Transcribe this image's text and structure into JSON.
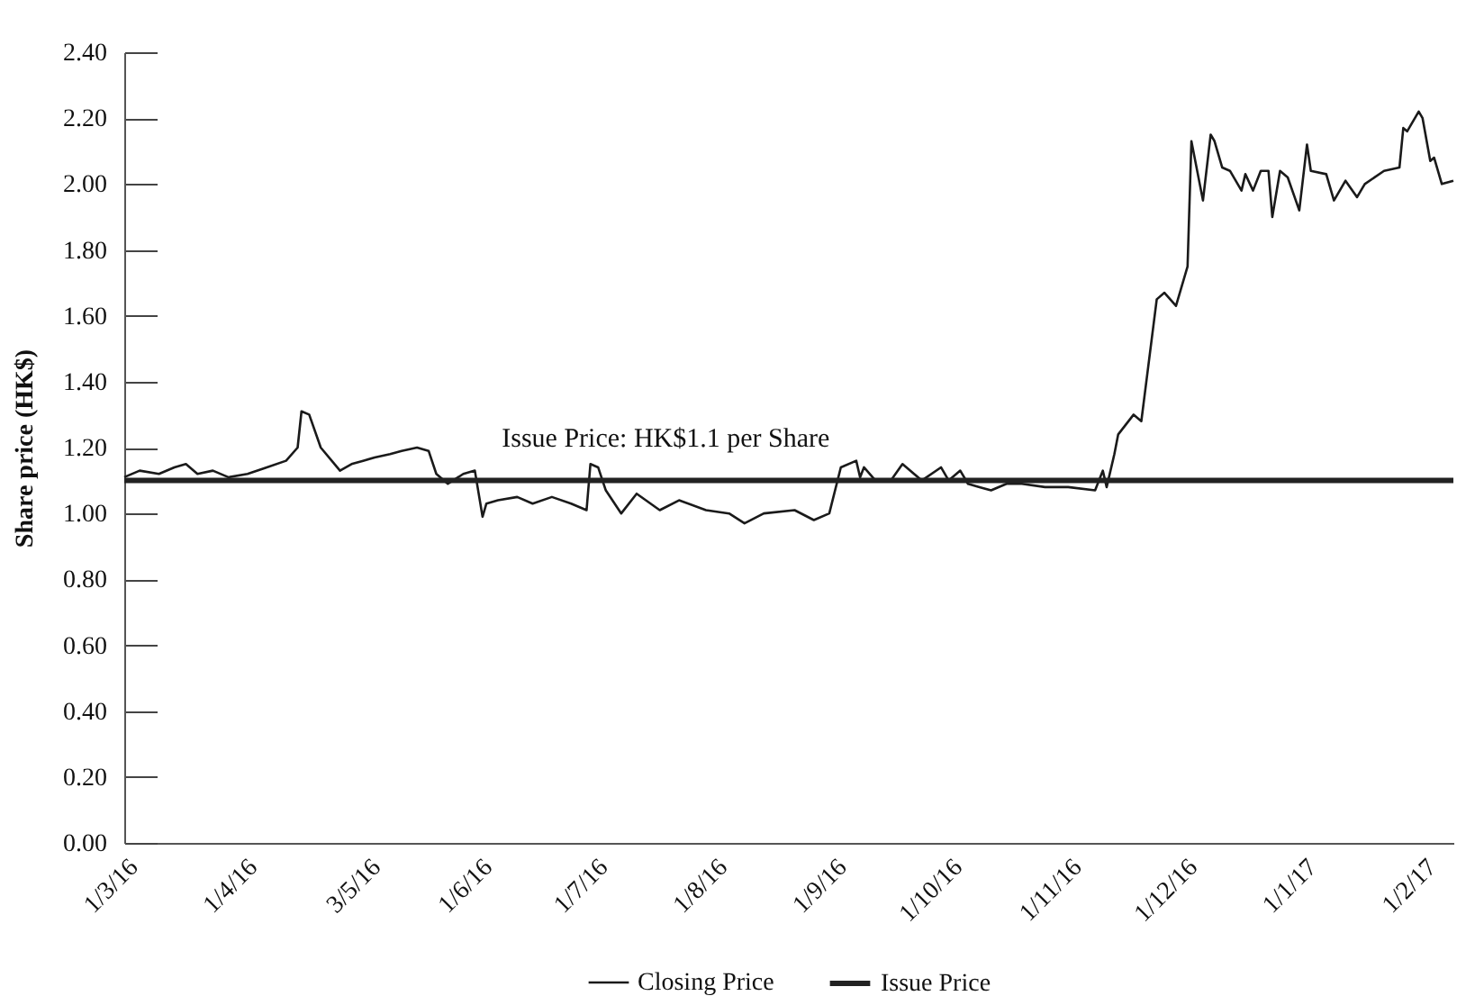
{
  "chart_data": {
    "type": "line",
    "ylabel": "Share price (HK$)",
    "xlim": [
      "2016-03-01",
      "2017-02-09"
    ],
    "xticks": [
      {
        "value": "2016-03-01",
        "label": "1/3/16"
      },
      {
        "value": "2016-04-01",
        "label": "1/4/16"
      },
      {
        "value": "2016-05-03",
        "label": "3/5/16"
      },
      {
        "value": "2016-06-01",
        "label": "1/6/16"
      },
      {
        "value": "2016-07-01",
        "label": "1/7/16"
      },
      {
        "value": "2016-08-01",
        "label": "1/8/16"
      },
      {
        "value": "2016-09-01",
        "label": "1/9/16"
      },
      {
        "value": "2016-10-01",
        "label": "1/10/16"
      },
      {
        "value": "2016-11-01",
        "label": "1/11/16"
      },
      {
        "value": "2016-12-01",
        "label": "1/12/16"
      },
      {
        "value": "2017-01-01",
        "label": "1/1/17"
      },
      {
        "value": "2017-02-01",
        "label": "1/2/17"
      }
    ],
    "ylim": [
      0,
      2.4
    ],
    "yticks": [
      {
        "value": 0,
        "label": "0.00"
      },
      {
        "value": 0.2,
        "label": "0.20"
      },
      {
        "value": 0.4,
        "label": "0.40"
      },
      {
        "value": 0.6,
        "label": "0.60"
      },
      {
        "value": 0.8,
        "label": "0.80"
      },
      {
        "value": 1,
        "label": "1.00"
      },
      {
        "value": 1.2,
        "label": "1.20"
      },
      {
        "value": 1.4,
        "label": "1.40"
      },
      {
        "value": 1.6,
        "label": "1.60"
      },
      {
        "value": 1.8,
        "label": "1.80"
      },
      {
        "value": 2,
        "label": "2.00"
      },
      {
        "value": 2.2,
        "label": "2.20"
      },
      {
        "value": 2.4,
        "label": "2.40"
      }
    ],
    "grid": false,
    "legend": "bottom",
    "marker": "none",
    "line_style": "solid",
    "annotations": [
      {
        "text": "Issue Price: HK$1.1 per Share",
        "x": "2016-06-07",
        "y": 1.1
      }
    ],
    "series": [
      {
        "name": "Closing Price",
        "color": "#1a1a1a",
        "x": [
          "2016-03-01",
          "2016-03-05",
          "2016-03-10",
          "2016-03-14",
          "2016-03-17",
          "2016-03-20",
          "2016-03-24",
          "2016-03-28",
          "2016-04-02",
          "2016-04-07",
          "2016-04-12",
          "2016-04-15",
          "2016-04-16",
          "2016-04-18",
          "2016-04-21",
          "2016-04-26",
          "2016-04-29",
          "2016-05-02",
          "2016-05-05",
          "2016-05-09",
          "2016-05-12",
          "2016-05-16",
          "2016-05-19",
          "2016-05-21",
          "2016-05-24",
          "2016-05-28",
          "2016-05-31",
          "2016-06-02",
          "2016-06-03",
          "2016-06-06",
          "2016-06-11",
          "2016-06-15",
          "2016-06-20",
          "2016-06-25",
          "2016-06-29",
          "2016-06-30",
          "2016-07-02",
          "2016-07-04",
          "2016-07-08",
          "2016-07-12",
          "2016-07-18",
          "2016-07-23",
          "2016-07-30",
          "2016-08-05",
          "2016-08-09",
          "2016-08-14",
          "2016-08-22",
          "2016-08-27",
          "2016-08-31",
          "2016-09-03",
          "2016-09-07",
          "2016-09-08",
          "2016-09-09",
          "2016-09-12",
          "2016-09-16",
          "2016-09-19",
          "2016-09-24",
          "2016-09-29",
          "2016-10-01",
          "2016-10-04",
          "2016-10-06",
          "2016-10-09",
          "2016-10-12",
          "2016-10-16",
          "2016-10-20",
          "2016-10-26",
          "2016-11-01",
          "2016-11-08",
          "2016-11-10",
          "2016-11-11",
          "2016-11-13",
          "2016-11-14",
          "2016-11-18",
          "2016-11-20",
          "2016-11-24",
          "2016-11-26",
          "2016-11-29",
          "2016-12-02",
          "2016-12-03",
          "2016-12-06",
          "2016-12-08",
          "2016-12-09",
          "2016-12-11",
          "2016-12-13",
          "2016-12-16",
          "2016-12-17",
          "2016-12-19",
          "2016-12-21",
          "2016-12-23",
          "2016-12-24",
          "2016-12-26",
          "2016-12-28",
          "2016-12-31",
          "2017-01-02",
          "2017-01-03",
          "2017-01-07",
          "2017-01-09",
          "2017-01-12",
          "2017-01-15",
          "2017-01-17",
          "2017-01-22",
          "2017-01-26",
          "2017-01-27",
          "2017-01-28",
          "2017-01-31",
          "2017-02-01",
          "2017-02-03",
          "2017-02-04",
          "2017-02-06",
          "2017-02-09"
        ],
        "values": [
          1.11,
          1.13,
          1.12,
          1.14,
          1.15,
          1.12,
          1.13,
          1.11,
          1.12,
          1.14,
          1.16,
          1.2,
          1.31,
          1.3,
          1.2,
          1.13,
          1.15,
          1.16,
          1.17,
          1.18,
          1.19,
          1.2,
          1.19,
          1.12,
          1.09,
          1.12,
          1.13,
          0.99,
          1.03,
          1.04,
          1.05,
          1.03,
          1.05,
          1.03,
          1.01,
          1.15,
          1.14,
          1.07,
          1.0,
          1.06,
          1.01,
          1.04,
          1.01,
          1.0,
          0.97,
          1.0,
          1.01,
          0.98,
          1.0,
          1.14,
          1.16,
          1.11,
          1.14,
          1.1,
          1.1,
          1.15,
          1.1,
          1.14,
          1.1,
          1.13,
          1.09,
          1.08,
          1.07,
          1.09,
          1.09,
          1.08,
          1.08,
          1.07,
          1.13,
          1.08,
          1.18,
          1.24,
          1.3,
          1.28,
          1.65,
          1.67,
          1.63,
          1.75,
          2.13,
          1.95,
          2.15,
          2.13,
          2.05,
          2.04,
          1.98,
          2.03,
          1.98,
          2.04,
          2.04,
          1.9,
          2.04,
          2.02,
          1.92,
          2.12,
          2.04,
          2.03,
          1.95,
          2.01,
          1.96,
          2.0,
          2.04,
          2.05,
          2.17,
          2.16,
          2.22,
          2.2,
          2.07,
          2.08,
          2.0,
          2.01
        ]
      },
      {
        "name": "Issue Price",
        "color": "#222222",
        "x": [
          "2016-03-01",
          "2017-02-09"
        ],
        "values": [
          1.1,
          1.1
        ]
      }
    ]
  }
}
